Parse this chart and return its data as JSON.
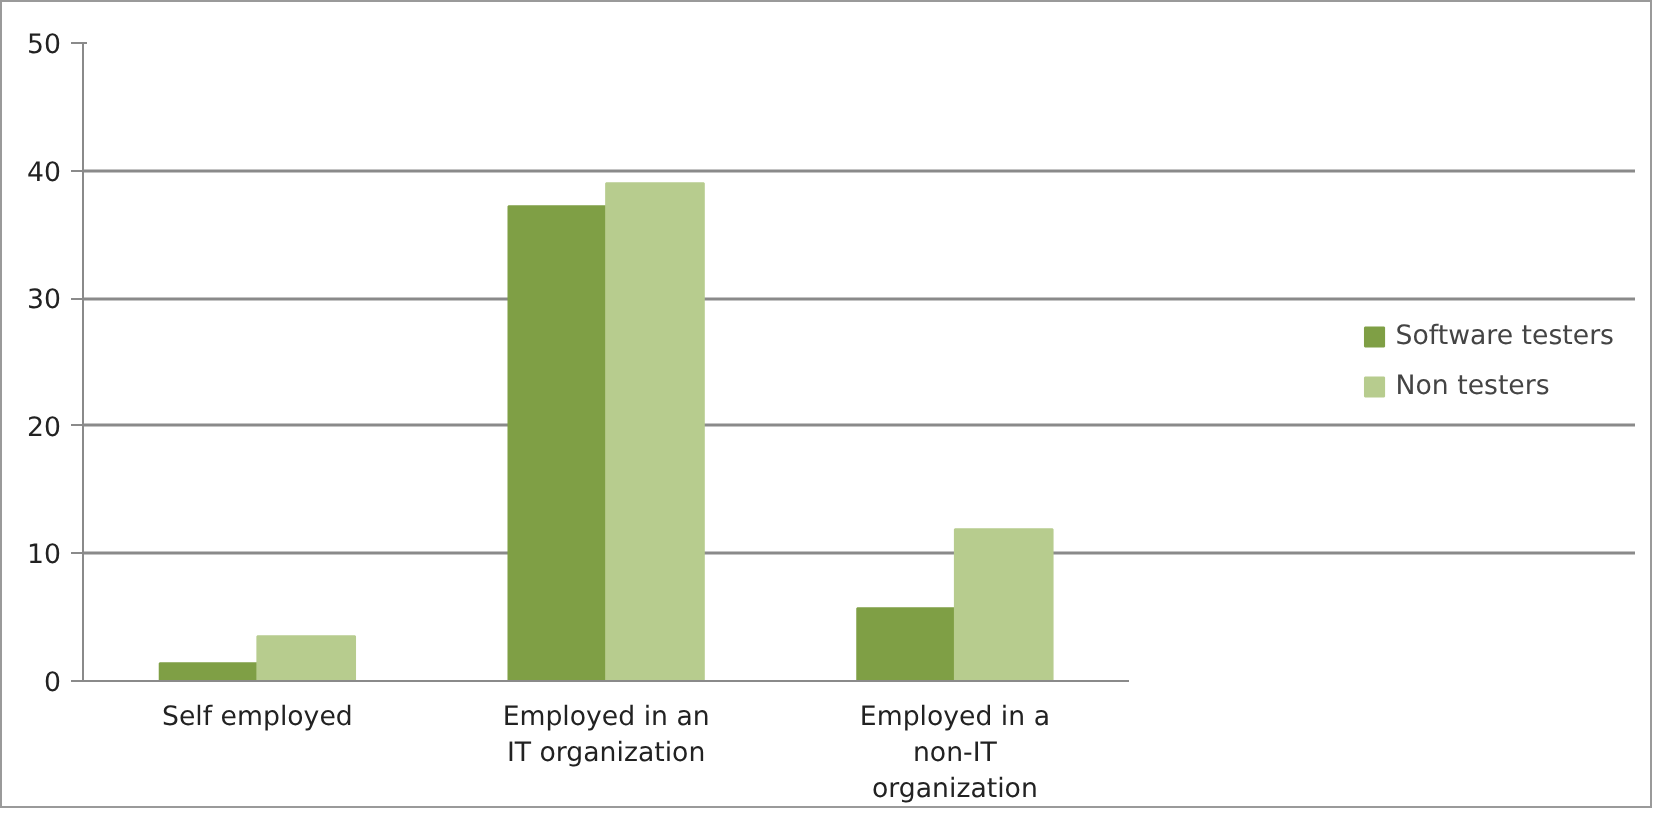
{
  "chart_data": {
    "type": "bar",
    "categories": [
      "Self employed",
      "Employed in an IT organization",
      "Employed in a non-IT organization"
    ],
    "series": [
      {
        "name": "Software testers",
        "color": "#7f9f45",
        "values": [
          1.4,
          37.2,
          5.7
        ]
      },
      {
        "name": "Non testers",
        "color": "#b7cc8e",
        "values": [
          3.5,
          39,
          11.9
        ]
      }
    ],
    "ylim": [
      0,
      50
    ],
    "yticks": [
      0,
      10,
      20,
      30,
      40,
      50
    ],
    "grid": "y",
    "legend": "right"
  }
}
